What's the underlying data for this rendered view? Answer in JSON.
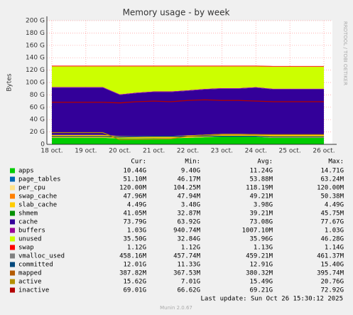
{
  "chart_data": {
    "type": "area",
    "title": "Memory usage - by week",
    "y_label": "Bytes",
    "side_text": "RRDTOOL / TOBI OETIKER",
    "categories": [
      "18 oct.",
      null,
      "19 oct.",
      null,
      "20 oct.",
      null,
      "21 oct.",
      null,
      "22 oct.",
      null,
      "23 oct.",
      null,
      "24 oct.",
      null,
      "25 oct.",
      null,
      "26 oct."
    ],
    "ylim": [
      0,
      200
    ],
    "yticks": [
      0,
      {
        "value": 20,
        "label": "20 G"
      },
      {
        "value": 40,
        "label": "40 G"
      },
      {
        "value": 60,
        "label": "60 G"
      },
      {
        "value": 80,
        "label": "80 G"
      },
      {
        "value": 100,
        "label": "100 G"
      },
      {
        "value": 120,
        "label": "120 G"
      },
      {
        "value": 140,
        "label": "140 G"
      },
      {
        "value": 160,
        "label": "160 G"
      },
      {
        "value": 180,
        "label": "180 G"
      },
      {
        "value": 200,
        "label": "200 G"
      }
    ],
    "grid": true,
    "stat_columns": [
      "Cur:",
      "Min:",
      "Avg:",
      "Max:"
    ],
    "series": [
      {
        "name": "apps",
        "color": "#00cc00",
        "style": "area",
        "stats": [
          "10.44G",
          "9.40G",
          "11.24G",
          "14.71G"
        ],
        "values": [
          10.5,
          10.5,
          10.5,
          10.5,
          9.6,
          9.6,
          9.8,
          9.8,
          10.5,
          11.5,
          12.5,
          12.5,
          12,
          10.4,
          10.4,
          10.4,
          10.4
        ]
      },
      {
        "name": "page_tables",
        "color": "#0066b3",
        "style": "area",
        "stats": [
          "51.10M",
          "46.17M",
          "53.88M",
          "63.24M"
        ],
        "values": [
          0.05,
          0.05,
          0.05,
          0.05,
          0.05,
          0.05,
          0.05,
          0.05,
          0.05,
          0.05,
          0.05,
          0.05,
          0.05,
          0.05,
          0.05,
          0.05,
          0.05
        ]
      },
      {
        "name": "per_cpu",
        "color": "#ffe28a",
        "style": "area",
        "stats": [
          "120.00M",
          "104.25M",
          "118.19M",
          "120.00M"
        ],
        "values": [
          0.12,
          0.12,
          0.12,
          0.12,
          0.12,
          0.12,
          0.12,
          0.12,
          0.12,
          0.12,
          0.12,
          0.12,
          0.12,
          0.12,
          0.12,
          0.12,
          0.12
        ]
      },
      {
        "name": "swap_cache",
        "color": "#ff8000",
        "style": "area",
        "stats": [
          "47.96M",
          "47.94M",
          "49.21M",
          "50.38M"
        ],
        "values": [
          0.05,
          0.05,
          0.05,
          0.05,
          0.05,
          0.05,
          0.05,
          0.05,
          0.05,
          0.05,
          0.05,
          0.05,
          0.05,
          0.05,
          0.05,
          0.05,
          0.05
        ]
      },
      {
        "name": "slab_cache",
        "color": "#ffcc00",
        "style": "area",
        "stats": [
          "4.49G",
          "3.48G",
          "3.98G",
          "4.49G"
        ],
        "values": [
          4.5,
          4.5,
          4.5,
          4.5,
          3.5,
          3.5,
          3.6,
          3.6,
          3.8,
          4,
          4.2,
          4.2,
          4.3,
          4.5,
          4.5,
          4.5,
          4.5
        ]
      },
      {
        "name": "shmem",
        "color": "#008f00",
        "style": "line",
        "stats": [
          "41.05M",
          "32.87M",
          "39.21M",
          "45.75M"
        ]
      },
      {
        "name": "cache",
        "color": "#330099",
        "style": "area",
        "stats": [
          "73.79G",
          "63.92G",
          "73.08G",
          "77.67G"
        ],
        "values": [
          76.5,
          76.5,
          76.5,
          76.5,
          66.5,
          69.5,
          71,
          71,
          72,
          73,
          73,
          73,
          75,
          73.8,
          73.8,
          73.8,
          73.8
        ]
      },
      {
        "name": "buffers",
        "color": "#990099",
        "style": "area",
        "stats": [
          "1.03G",
          "940.74M",
          "1007.10M",
          "1.03G"
        ],
        "values": [
          1,
          1,
          1,
          1,
          1,
          1,
          1,
          1,
          1,
          1,
          1,
          1,
          1,
          1,
          1,
          1,
          1
        ]
      },
      {
        "name": "unused",
        "color": "#ccff00",
        "style": "area",
        "stats": [
          "35.50G",
          "32.84G",
          "35.96G",
          "46.28G"
        ],
        "values": [
          33.3,
          33.3,
          33.3,
          33.3,
          45.2,
          42.2,
          40.4,
          40.4,
          38.5,
          36.3,
          35.1,
          35.1,
          33.5,
          35.6,
          35.6,
          35.6,
          35.6
        ]
      },
      {
        "name": "swap",
        "color": "#ff0000",
        "style": "area",
        "stats": [
          "1.12G",
          "1.12G",
          "1.13G",
          "1.14G"
        ],
        "values": [
          1.12,
          1.12,
          1.12,
          1.12,
          1.12,
          1.12,
          1.12,
          1.12,
          1.12,
          1.12,
          1.12,
          1.12,
          1.12,
          1.12,
          1.12,
          1.12,
          1.12
        ]
      },
      {
        "name": "vmalloc_used",
        "color": "#808080",
        "style": "line",
        "stats": [
          "458.16M",
          "457.74M",
          "459.21M",
          "461.37M"
        ]
      },
      {
        "name": "committed",
        "color": "#00487d",
        "style": "line",
        "stats": [
          "12.01G",
          "11.33G",
          "12.91G",
          "15.40G"
        ],
        "values": [
          12.5,
          12.5,
          12.5,
          12.5,
          12,
          12.5,
          13,
          13,
          13,
          13.5,
          13,
          13,
          13,
          12,
          12,
          12,
          12
        ]
      },
      {
        "name": "mapped",
        "color": "#b35a00",
        "style": "line",
        "stats": [
          "387.82M",
          "367.53M",
          "380.32M",
          "395.74M"
        ]
      },
      {
        "name": "active",
        "color": "#b38f00",
        "style": "line",
        "stats": [
          "15.62G",
          "7.01G",
          "15.49G",
          "20.76G"
        ],
        "values": [
          19,
          19,
          19,
          19,
          7.5,
          8,
          8.5,
          9,
          13,
          15,
          16,
          16,
          15.8,
          15.6,
          15.6,
          15.6,
          15.6
        ]
      },
      {
        "name": "inactive",
        "color": "#b30000",
        "style": "line",
        "stats": [
          "69.01G",
          "66.62G",
          "69.21G",
          "72.92G"
        ],
        "values": [
          68,
          68,
          68,
          68,
          67,
          69,
          70,
          69,
          71,
          72,
          71,
          71,
          70,
          69,
          69,
          69,
          69
        ]
      }
    ],
    "last_update": "Last update: Sun Oct 26 15:30:12 2025",
    "footer": "Munin 2.0.67"
  }
}
